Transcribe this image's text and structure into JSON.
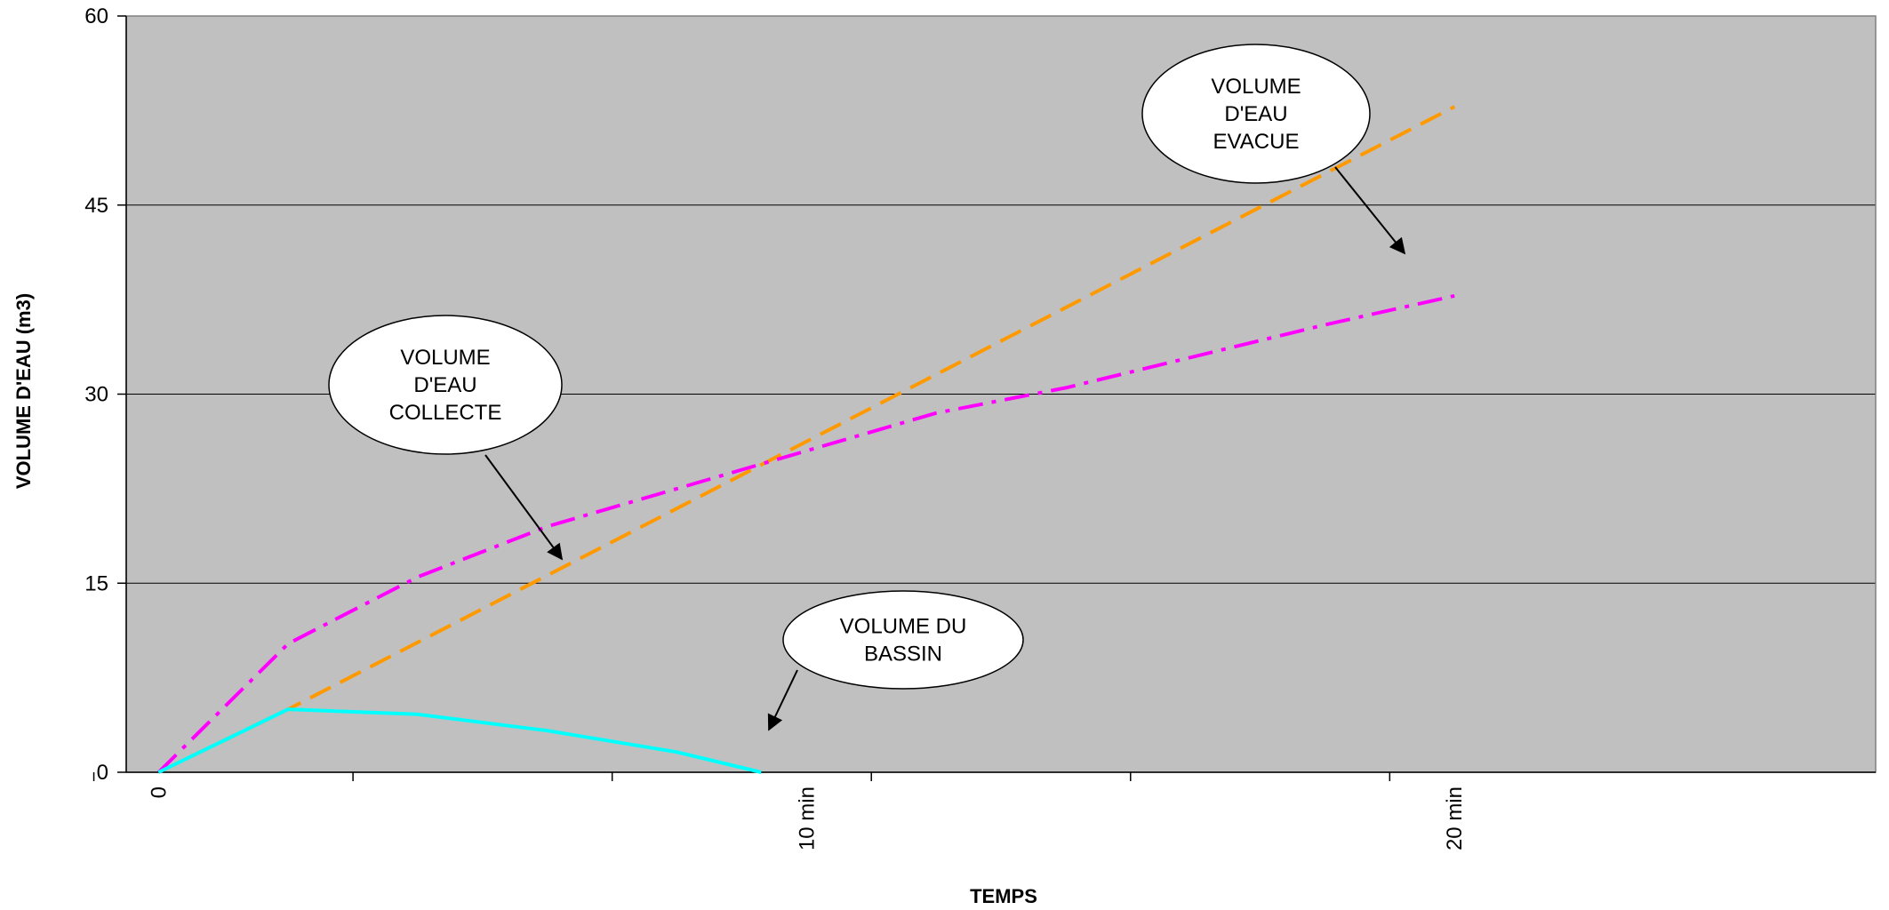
{
  "chart_data": {
    "type": "line",
    "xlabel": "TEMPS",
    "ylabel": "VOLUME D'EAU (m3)",
    "xlim": [
      -0.5,
      26.5
    ],
    "ylim": [
      0,
      60
    ],
    "y_ticks": [
      0,
      15,
      30,
      45,
      60
    ],
    "x_tick_labels": [
      {
        "x": 0,
        "label": "0"
      },
      {
        "x": 10,
        "label": "10 min"
      },
      {
        "x": 20,
        "label": "20 min"
      }
    ],
    "x_minor_ticks": [
      -1,
      3,
      7,
      11,
      15,
      19
    ],
    "grid": "horizontal",
    "series": [
      {
        "name": "VOLUME D'EAU EVACUE",
        "color": "#ff9900",
        "style": "dashed",
        "x": [
          0,
          2,
          20
        ],
        "y": [
          0,
          5,
          52.8
        ]
      },
      {
        "name": "VOLUME D'EAU COLLECTE",
        "color": "#ff00ff",
        "style": "dashdot",
        "x": [
          0,
          2,
          4,
          6,
          8,
          10,
          12,
          14,
          16,
          18,
          20
        ],
        "y": [
          0,
          10.2,
          15.5,
          19.5,
          22.5,
          25.5,
          28.5,
          30.5,
          33,
          35.5,
          37.8
        ]
      },
      {
        "name": "VOLUME DU BASSIN",
        "color": "#00ffff",
        "style": "solid",
        "x": [
          0,
          2,
          4,
          6,
          8,
          9.3
        ],
        "y": [
          0,
          5,
          4.6,
          3.3,
          1.6,
          0
        ]
      }
    ],
    "annotations": [
      {
        "lines": [
          "VOLUME",
          "D'EAU",
          "EVACUE"
        ],
        "target_series": 0
      },
      {
        "lines": [
          "VOLUME",
          "D'EAU",
          "COLLECTE"
        ],
        "target_series": 1
      },
      {
        "lines": [
          "VOLUME DU",
          "BASSIN"
        ],
        "target_series": 2
      }
    ]
  },
  "colors": {
    "plot_background": "#c0c0c0",
    "gridline": "#000000"
  }
}
